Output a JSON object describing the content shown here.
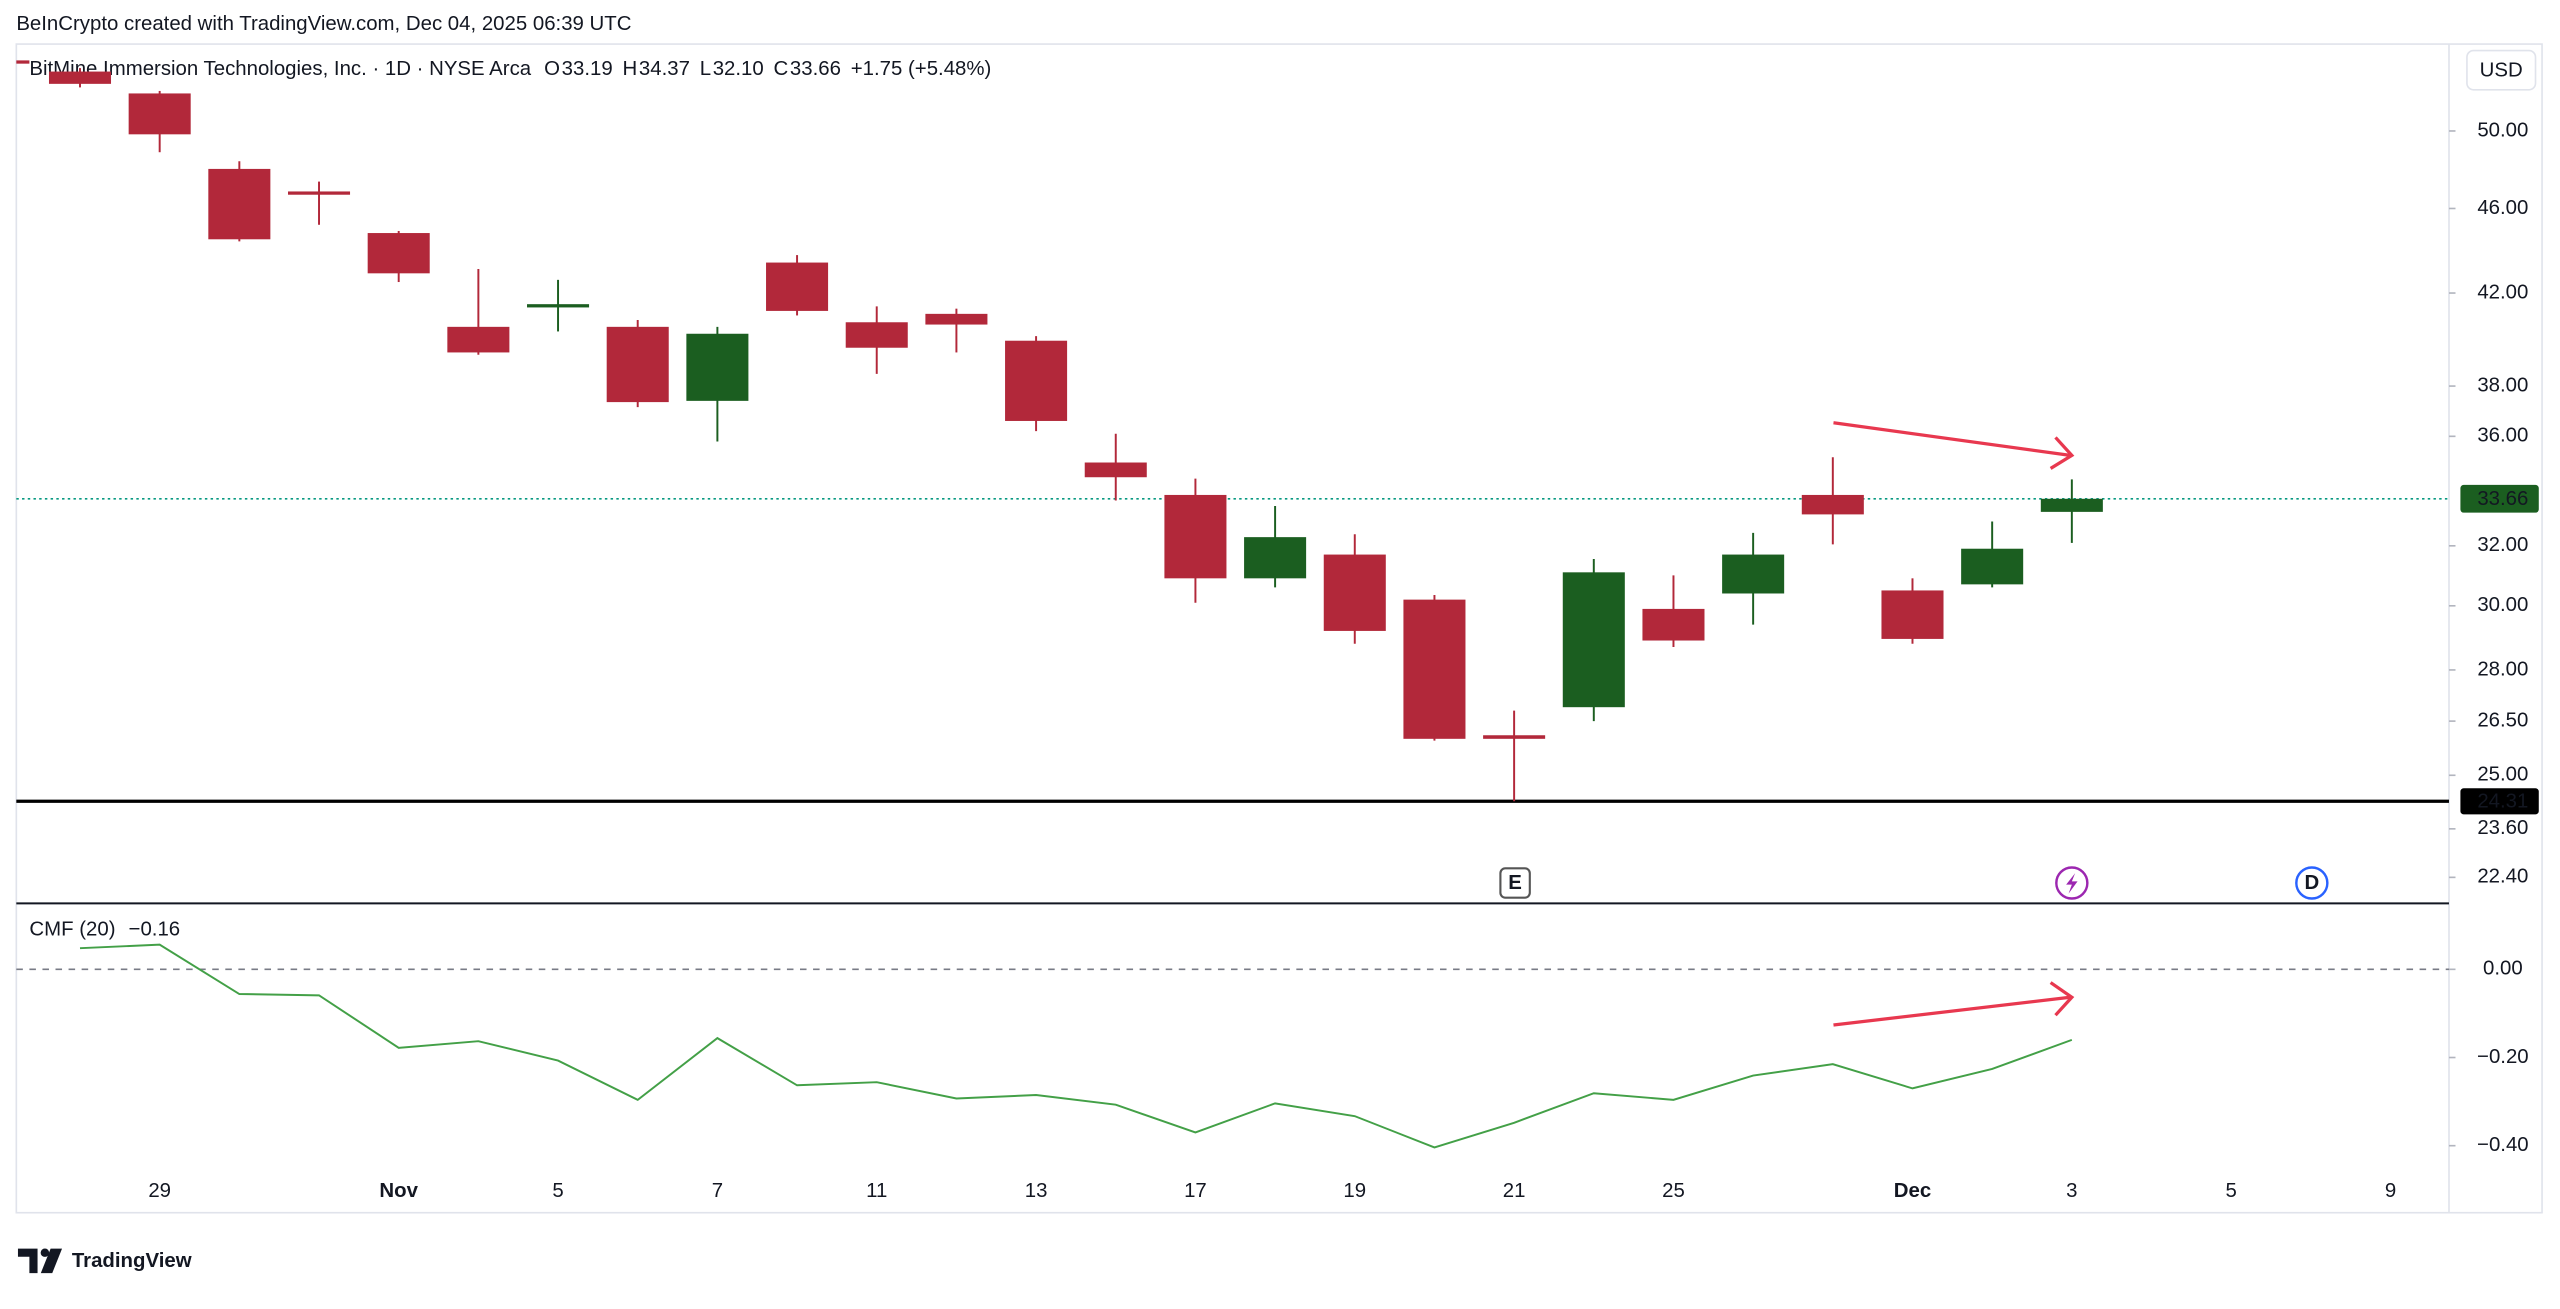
{
  "attribution": "BeInCrypto created with TradingView.com, Dec 04, 2025 06:39 UTC",
  "currency": "USD",
  "branding": "TradingView",
  "events": [
    "E",
    "D"
  ],
  "chart_data": [
    {
      "type": "candlestick",
      "title": "BitMine Immersion Technologies, Inc. · 1D · NYSE Arca",
      "legend_letters": [
        "O",
        "H",
        "L",
        "C"
      ],
      "legend_values": [
        "33.19",
        "34.37",
        "32.10",
        "33.66"
      ],
      "change": "+1.75 (+5.48%)",
      "up_color": "#1b5e20",
      "down_color": "#b2283a",
      "log_scale": true,
      "grid": false,
      "open": [
        53.3,
        52.06,
        48.0,
        46.85,
        44.8,
        40.5,
        41.36,
        40.5,
        37.4,
        43.4,
        40.7,
        41.07,
        39.9,
        35.0,
        33.8,
        30.9,
        31.7,
        30.2,
        26.1,
        26.9,
        29.9,
        30.4,
        33.8,
        30.5,
        30.7,
        33.19
      ],
      "high": [
        53.5,
        52.2,
        48.4,
        47.35,
        44.9,
        43.1,
        42.6,
        40.8,
        40.5,
        43.75,
        41.4,
        41.3,
        40.1,
        36.1,
        34.4,
        33.4,
        32.4,
        30.35,
        26.8,
        31.55,
        31.0,
        32.45,
        35.2,
        30.9,
        32.85,
        34.37
      ],
      "low": [
        52.4,
        48.87,
        44.4,
        45.2,
        42.5,
        39.3,
        40.3,
        37.15,
        35.8,
        41.0,
        38.5,
        39.4,
        36.2,
        33.6,
        30.1,
        30.6,
        28.8,
        25.95,
        24.31,
        26.5,
        28.7,
        29.4,
        32.05,
        28.8,
        30.6,
        32.1
      ],
      "close": [
        52.6,
        49.82,
        44.5,
        46.7,
        42.9,
        39.4,
        41.5,
        37.35,
        40.2,
        41.2,
        39.6,
        40.6,
        36.6,
        34.45,
        30.9,
        32.3,
        29.2,
        26.0,
        26.0,
        31.1,
        28.9,
        31.7,
        33.1,
        28.95,
        31.9,
        33.66
      ],
      "last_price": {
        "value": 33.66,
        "label": "33.66"
      },
      "support": {
        "value": 24.31,
        "label": "24.31"
      },
      "ylim": [
        21.8,
        54.9
      ],
      "yticks": [
        {
          "value": 50,
          "label": "50.00"
        },
        {
          "value": 46,
          "label": "46.00"
        },
        {
          "value": 42,
          "label": "42.00"
        },
        {
          "value": 38,
          "label": "38.00"
        },
        {
          "value": 36,
          "label": "36.00"
        },
        {
          "value": 32,
          "label": "32.00"
        },
        {
          "value": 30,
          "label": "30.00"
        },
        {
          "value": 28,
          "label": "28.00"
        },
        {
          "value": 26.5,
          "label": "26.50"
        },
        {
          "value": 25,
          "label": "25.00"
        },
        {
          "value": 23.6,
          "label": "23.60"
        },
        {
          "value": 22.4,
          "label": "22.40"
        }
      ]
    },
    {
      "type": "line",
      "title": "CMF (20)",
      "last_value_label": "−0.16",
      "color": "#43a047",
      "grid": false,
      "categories": [
        null,
        "29",
        null,
        null,
        "Nov",
        null,
        "5",
        null,
        "7",
        null,
        "11",
        null,
        "13",
        null,
        "17",
        null,
        "19",
        null,
        "21",
        null,
        "25",
        null,
        null,
        "Dec",
        null,
        "3",
        null,
        "5",
        null,
        "9"
      ],
      "values": [
        0.048,
        0.056,
        -0.056,
        -0.059,
        -0.178,
        -0.163,
        -0.207,
        -0.296,
        -0.156,
        -0.263,
        -0.256,
        -0.293,
        -0.285,
        -0.307,
        -0.37,
        -0.304,
        -0.333,
        -0.404,
        -0.348,
        -0.281,
        -0.296,
        -0.241,
        -0.215,
        -0.27,
        -0.226,
        -0.16,
        null,
        null,
        null,
        null
      ],
      "ylim": [
        -0.552,
        0.144
      ],
      "yticks": [
        {
          "value": 0,
          "label": "0.00"
        },
        {
          "value": -0.2,
          "label": "−0.20"
        },
        {
          "value": -0.4,
          "label": "−0.40"
        }
      ]
    }
  ]
}
